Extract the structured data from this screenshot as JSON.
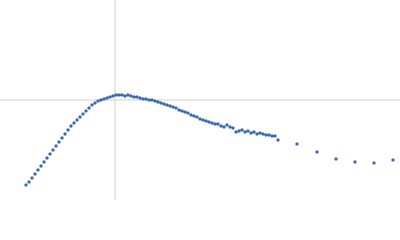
{
  "chart_data": {
    "type": "scatter",
    "color": "#3a68b0",
    "xlim": [
      0,
      400
    ],
    "ylim": [
      200,
      0
    ],
    "crosshair": {
      "x": 115,
      "y": 100
    },
    "x": [
      26,
      29,
      32,
      35,
      38,
      41,
      44,
      47,
      50,
      53,
      56,
      59,
      62,
      65,
      68,
      71,
      74,
      77,
      80,
      83,
      86,
      89,
      92,
      95,
      98,
      101,
      104,
      107,
      110,
      113,
      116,
      119,
      122,
      125,
      128,
      131,
      134,
      137,
      140,
      143,
      146,
      149,
      152,
      155,
      158,
      161,
      164,
      167,
      170,
      173,
      176,
      179,
      182,
      185,
      188,
      191,
      194,
      197,
      200,
      203,
      206,
      209,
      212,
      215,
      218,
      221,
      224,
      227,
      230,
      233,
      236,
      239,
      242,
      245,
      248,
      251,
      254,
      257,
      260,
      263,
      266,
      269,
      272,
      275,
      278,
      297,
      317,
      336,
      355,
      374,
      393
    ],
    "y": [
      185,
      182,
      178,
      174,
      170,
      166,
      162,
      158,
      154,
      150,
      146,
      142,
      138,
      134,
      130,
      126,
      123,
      120,
      117,
      114,
      111,
      108,
      105,
      103,
      101,
      100,
      99,
      98,
      97,
      96,
      95,
      95,
      95,
      96,
      95,
      96,
      97,
      97,
      98,
      99,
      99,
      100,
      100,
      101,
      102,
      103,
      104,
      105,
      106,
      107,
      108,
      110,
      111,
      112,
      113,
      115,
      116,
      117,
      119,
      120,
      121,
      122,
      123,
      124,
      124,
      126,
      127,
      125,
      127,
      128,
      132,
      131,
      130,
      132,
      131,
      133,
      132,
      134,
      133,
      134,
      135,
      135,
      136,
      136,
      140,
      144,
      152,
      159,
      162,
      163,
      160
    ]
  }
}
